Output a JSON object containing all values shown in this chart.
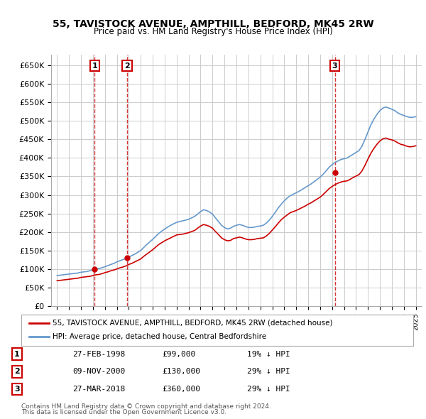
{
  "title": "55, TAVISTOCK AVENUE, AMPTHILL, BEDFORD, MK45 2RW",
  "subtitle": "Price paid vs. HM Land Registry's House Price Index (HPI)",
  "legend_line1": "55, TAVISTOCK AVENUE, AMPTHILL, BEDFORD, MK45 2RW (detached house)",
  "legend_line2": "HPI: Average price, detached house, Central Bedfordshire",
  "footer1": "Contains HM Land Registry data © Crown copyright and database right 2024.",
  "footer2": "This data is licensed under the Open Government Licence v3.0.",
  "sale_labels": [
    "1",
    "2",
    "3"
  ],
  "sale_dates": [
    "27-FEB-1998",
    "09-NOV-2000",
    "27-MAR-2018"
  ],
  "sale_prices": [
    99000,
    130000,
    360000
  ],
  "sale_hpi": [
    "19% ↓ HPI",
    "29% ↓ HPI",
    "29% ↓ HPI"
  ],
  "sale_years": [
    1998.15,
    2000.85,
    2018.23
  ],
  "ylim": [
    0,
    680000
  ],
  "xlim": [
    1994.5,
    2025.5
  ],
  "yticks": [
    0,
    50000,
    100000,
    150000,
    200000,
    250000,
    300000,
    350000,
    400000,
    450000,
    500000,
    550000,
    600000,
    650000
  ],
  "xticks": [
    1995,
    1996,
    1997,
    1998,
    1999,
    2000,
    2001,
    2002,
    2003,
    2004,
    2005,
    2006,
    2007,
    2008,
    2009,
    2010,
    2011,
    2012,
    2013,
    2014,
    2015,
    2016,
    2017,
    2018,
    2019,
    2020,
    2021,
    2022,
    2023,
    2024,
    2025
  ],
  "bg_color": "#ffffff",
  "grid_color": "#cccccc",
  "red_line_color": "#cc0000",
  "blue_line_color": "#6699cc",
  "sale_box_color": "#cc0000",
  "hpi_x": [
    1995,
    1995.25,
    1995.5,
    1995.75,
    1996,
    1996.25,
    1996.5,
    1996.75,
    1997,
    1997.25,
    1997.5,
    1997.75,
    1998,
    1998.25,
    1998.5,
    1998.75,
    1999,
    1999.25,
    1999.5,
    1999.75,
    2000,
    2000.25,
    2000.5,
    2000.75,
    2001,
    2001.25,
    2001.5,
    2001.75,
    2002,
    2002.25,
    2002.5,
    2002.75,
    2003,
    2003.25,
    2003.5,
    2003.75,
    2004,
    2004.25,
    2004.5,
    2004.75,
    2005,
    2005.25,
    2005.5,
    2005.75,
    2006,
    2006.25,
    2006.5,
    2006.75,
    2007,
    2007.25,
    2007.5,
    2007.75,
    2008,
    2008.25,
    2008.5,
    2008.75,
    2009,
    2009.25,
    2009.5,
    2009.75,
    2010,
    2010.25,
    2010.5,
    2010.75,
    2011,
    2011.25,
    2011.5,
    2011.75,
    2012,
    2012.25,
    2012.5,
    2012.75,
    2013,
    2013.25,
    2013.5,
    2013.75,
    2014,
    2014.25,
    2014.5,
    2014.75,
    2015,
    2015.25,
    2015.5,
    2015.75,
    2016,
    2016.25,
    2016.5,
    2016.75,
    2017,
    2017.25,
    2017.5,
    2017.75,
    2018,
    2018.25,
    2018.5,
    2018.75,
    2019,
    2019.25,
    2019.5,
    2019.75,
    2020,
    2020.25,
    2020.5,
    2020.75,
    2021,
    2021.25,
    2021.5,
    2021.75,
    2022,
    2022.25,
    2022.5,
    2022.75,
    2023,
    2023.25,
    2023.5,
    2023.75,
    2024,
    2024.25,
    2024.5,
    2024.75,
    2025
  ],
  "hpi_y": [
    82000,
    83000,
    84000,
    85000,
    86000,
    87000,
    88000,
    89000,
    91000,
    92000,
    93000,
    95000,
    97000,
    99000,
    101000,
    103000,
    106000,
    109000,
    112000,
    115000,
    119000,
    122000,
    125000,
    128000,
    132000,
    136000,
    140000,
    145000,
    150000,
    158000,
    166000,
    173000,
    180000,
    188000,
    196000,
    202000,
    208000,
    213000,
    218000,
    222000,
    226000,
    228000,
    230000,
    232000,
    234000,
    238000,
    242000,
    248000,
    255000,
    260000,
    258000,
    254000,
    248000,
    238000,
    228000,
    218000,
    212000,
    208000,
    210000,
    215000,
    218000,
    220000,
    218000,
    215000,
    212000,
    212000,
    213000,
    215000,
    216000,
    218000,
    224000,
    232000,
    242000,
    253000,
    265000,
    275000,
    284000,
    292000,
    298000,
    302000,
    306000,
    310000,
    315000,
    320000,
    325000,
    330000,
    336000,
    342000,
    348000,
    356000,
    365000,
    375000,
    382000,
    388000,
    392000,
    396000,
    398000,
    400000,
    405000,
    410000,
    415000,
    420000,
    432000,
    450000,
    470000,
    490000,
    505000,
    518000,
    528000,
    535000,
    538000,
    535000,
    532000,
    528000,
    522000,
    518000,
    515000,
    512000,
    510000,
    510000,
    512000
  ],
  "red_x": [
    1995,
    1995.25,
    1995.5,
    1995.75,
    1996,
    1996.25,
    1996.5,
    1996.75,
    1997,
    1997.25,
    1997.5,
    1997.75,
    1998,
    1998.25,
    1998.5,
    1998.75,
    1999,
    1999.25,
    1999.5,
    1999.75,
    2000,
    2000.25,
    2000.5,
    2000.75,
    2001,
    2001.25,
    2001.5,
    2001.75,
    2002,
    2002.25,
    2002.5,
    2002.75,
    2003,
    2003.25,
    2003.5,
    2003.75,
    2004,
    2004.25,
    2004.5,
    2004.75,
    2005,
    2005.25,
    2005.5,
    2005.75,
    2006,
    2006.25,
    2006.5,
    2006.75,
    2007,
    2007.25,
    2007.5,
    2007.75,
    2008,
    2008.25,
    2008.5,
    2008.75,
    2009,
    2009.25,
    2009.5,
    2009.75,
    2010,
    2010.25,
    2010.5,
    2010.75,
    2011,
    2011.25,
    2011.5,
    2011.75,
    2012,
    2012.25,
    2012.5,
    2012.75,
    2013,
    2013.25,
    2013.5,
    2013.75,
    2014,
    2014.25,
    2014.5,
    2014.75,
    2015,
    2015.25,
    2015.5,
    2015.75,
    2016,
    2016.25,
    2016.5,
    2016.75,
    2017,
    2017.25,
    2017.5,
    2017.75,
    2018,
    2018.25,
    2018.5,
    2018.75,
    2019,
    2019.25,
    2019.5,
    2019.75,
    2020,
    2020.25,
    2020.5,
    2020.75,
    2021,
    2021.25,
    2021.5,
    2021.75,
    2022,
    2022.25,
    2022.5,
    2022.75,
    2023,
    2023.25,
    2023.5,
    2023.75,
    2024,
    2024.25,
    2024.5,
    2024.75,
    2025
  ],
  "red_y": [
    68000,
    69000,
    70000,
    71000,
    72000,
    73000,
    74000,
    75000,
    77000,
    78000,
    79000,
    80000,
    82000,
    84000,
    85000,
    87000,
    90000,
    92000,
    95000,
    97000,
    100000,
    103000,
    105000,
    108000,
    112000,
    115000,
    119000,
    123000,
    127000,
    134000,
    140000,
    146000,
    152000,
    159000,
    166000,
    171000,
    176000,
    180000,
    184000,
    188000,
    192000,
    193000,
    194000,
    196000,
    198000,
    201000,
    204000,
    210000,
    216000,
    220000,
    218000,
    215000,
    210000,
    201000,
    193000,
    184000,
    179000,
    176000,
    177000,
    182000,
    184000,
    186000,
    184000,
    181000,
    179000,
    179000,
    180000,
    182000,
    183000,
    184000,
    189000,
    196000,
    205000,
    214000,
    224000,
    233000,
    240000,
    246000,
    252000,
    255000,
    258000,
    262000,
    266000,
    270000,
    275000,
    279000,
    284000,
    289000,
    294000,
    301000,
    309000,
    317000,
    323000,
    328000,
    332000,
    335000,
    337000,
    338000,
    342000,
    347000,
    351000,
    355000,
    365000,
    380000,
    397000,
    413000,
    426000,
    437000,
    446000,
    452000,
    454000,
    451000,
    449000,
    446000,
    441000,
    437000,
    435000,
    432000,
    430000,
    431000,
    433000
  ]
}
